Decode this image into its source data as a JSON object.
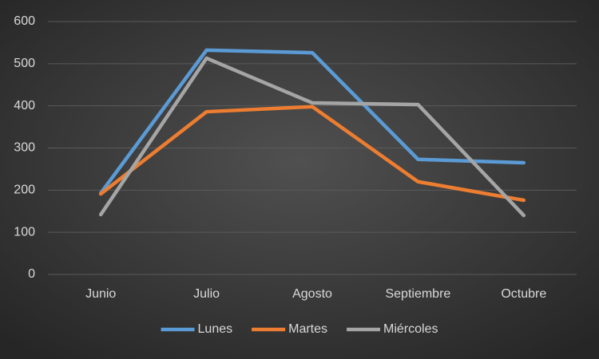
{
  "chart_data": {
    "type": "line",
    "categories": [
      "Junio",
      "Julio",
      "Agosto",
      "Septiembre",
      "Octubre"
    ],
    "series": [
      {
        "name": "Lunes",
        "color": "#5b9bd5",
        "values": [
          193,
          532,
          526,
          273,
          265
        ]
      },
      {
        "name": "Martes",
        "color": "#ed7d31",
        "values": [
          191,
          386,
          398,
          220,
          176
        ]
      },
      {
        "name": "Miércoles",
        "color": "#a5a5a5",
        "values": [
          142,
          513,
          407,
          403,
          140
        ]
      }
    ],
    "ylim": [
      0,
      600
    ],
    "yticks": [
      0,
      100,
      200,
      300,
      400,
      500,
      600
    ],
    "grid": true,
    "legend": "bottom"
  }
}
